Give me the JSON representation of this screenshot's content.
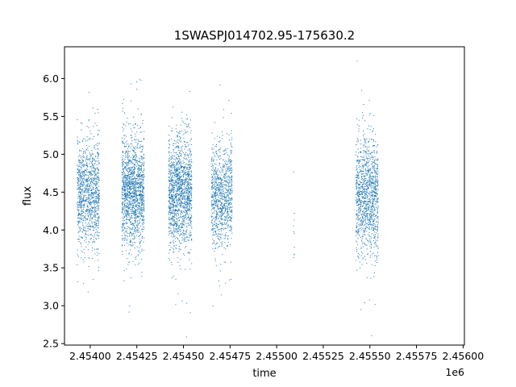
{
  "chart_data": {
    "type": "scatter",
    "title": "1SWASPJ014702.95-175630.2",
    "xlabel": "time",
    "ylabel": "flux",
    "x_offset_label": "1e6",
    "xlim": [
      2453862,
      2456007
    ],
    "ylim": [
      2.48,
      6.42
    ],
    "x_ticks": [
      2454000,
      2454250,
      2454500,
      2454750,
      2455000,
      2455250,
      2455500,
      2455750,
      2456000
    ],
    "x_tick_labels": [
      "2.45400",
      "2.45425",
      "2.45450",
      "2.45475",
      "2.45500",
      "2.45525",
      "2.45550",
      "2.45575",
      "2.45600"
    ],
    "y_ticks": [
      2.5,
      3.0,
      3.5,
      4.0,
      4.5,
      5.0,
      5.5,
      6.0
    ],
    "y_tick_labels": [
      "2.5",
      "3.0",
      "3.5",
      "4.0",
      "4.5",
      "5.0",
      "5.5",
      "6.0"
    ],
    "grid": false,
    "marker_color": "#1f77b4",
    "series": [
      {
        "points_note_ranges": true,
        "clusters": [
          {
            "x_range": [
              2453930,
              2454050
            ],
            "y_center": 4.48,
            "y_spread": 0.35,
            "count": 1100
          },
          {
            "x_range": [
              2454170,
              2454290
            ],
            "y_center": 4.5,
            "y_spread": 0.36,
            "count": 1500
          },
          {
            "x_range": [
              2454420,
              2454545
            ],
            "y_center": 4.5,
            "y_spread": 0.35,
            "count": 1500
          },
          {
            "x_range": [
              2454650,
              2454762
            ],
            "y_center": 4.45,
            "y_spread": 0.33,
            "count": 950
          },
          {
            "x_range": [
              2455090,
              2455095
            ],
            "y_center": 4.2,
            "y_spread": 0.35,
            "count": 10
          },
          {
            "x_range": [
              2455425,
              2455545
            ],
            "y_center": 4.45,
            "y_spread": 0.38,
            "count": 1200
          }
        ]
      }
    ]
  }
}
